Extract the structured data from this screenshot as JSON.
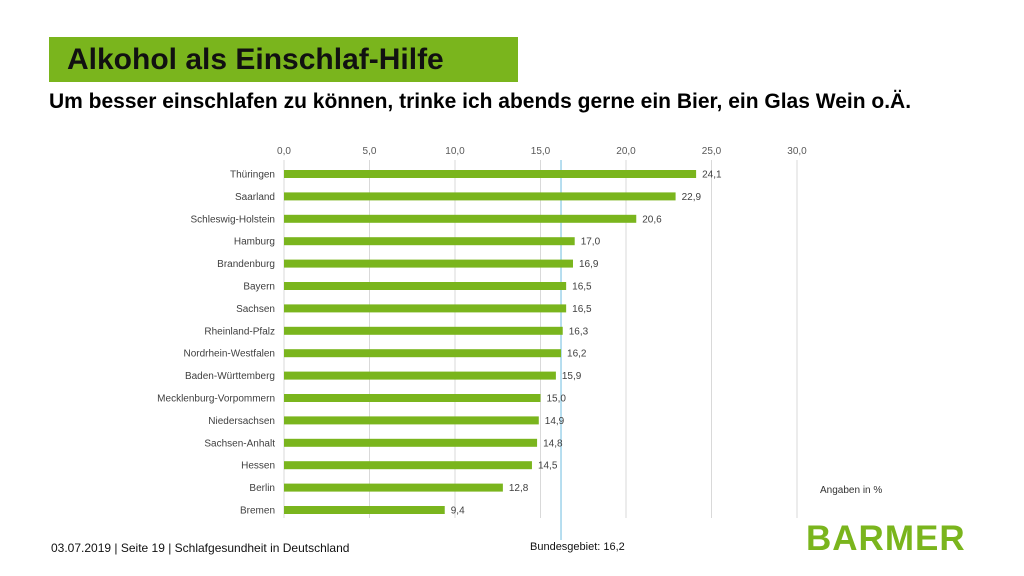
{
  "header": {
    "title": "Alkohol als Einschlaf-Hilfe",
    "subtitle": "Um besser einschlafen zu können, trinke ich abends gerne ein Bier, ein Glas Wein o.Ä."
  },
  "chart_data": {
    "type": "bar",
    "orientation": "horizontal",
    "categories": [
      "Thüringen",
      "Saarland",
      "Schleswig-Holstein",
      "Hamburg",
      "Brandenburg",
      "Bayern",
      "Sachsen",
      "Rheinland-Pfalz",
      "Nordrhein-Westfalen",
      "Baden-Württemberg",
      "Mecklenburg-Vorpommern",
      "Niedersachsen",
      "Sachsen-Anhalt",
      "Hessen",
      "Berlin",
      "Bremen"
    ],
    "values": [
      24.1,
      22.9,
      20.6,
      17.0,
      16.9,
      16.5,
      16.5,
      16.3,
      16.2,
      15.9,
      15.0,
      14.9,
      14.8,
      14.5,
      12.8,
      9.4
    ],
    "value_labels": [
      "24,1",
      "22,9",
      "20,6",
      "17,0",
      "16,9",
      "16,5",
      "16,5",
      "16,3",
      "16,2",
      "15,9",
      "15,0",
      "14,9",
      "14,8",
      "14,5",
      "12,8",
      "9,4"
    ],
    "xlim": [
      0,
      30
    ],
    "ticks": [
      0,
      5,
      10,
      15,
      20,
      25,
      30
    ],
    "tick_labels": [
      "0,0",
      "5,0",
      "10,0",
      "15,0",
      "20,0",
      "25,0",
      "30,0"
    ],
    "axis_position": "top",
    "grid": true,
    "reference_line": {
      "value": 16.2,
      "label": "Bundesgebiet: 16,2"
    },
    "unit_note": "Angaben in %",
    "bar_color": "#7ab51d",
    "reference_color": "#9fd3ea"
  },
  "footer": {
    "text": "03.07.2019 | Seite 19 | Schlafgesundheit in Deutschland",
    "logo": "BARMER"
  },
  "colors": {
    "brand_green": "#7ab51d"
  }
}
